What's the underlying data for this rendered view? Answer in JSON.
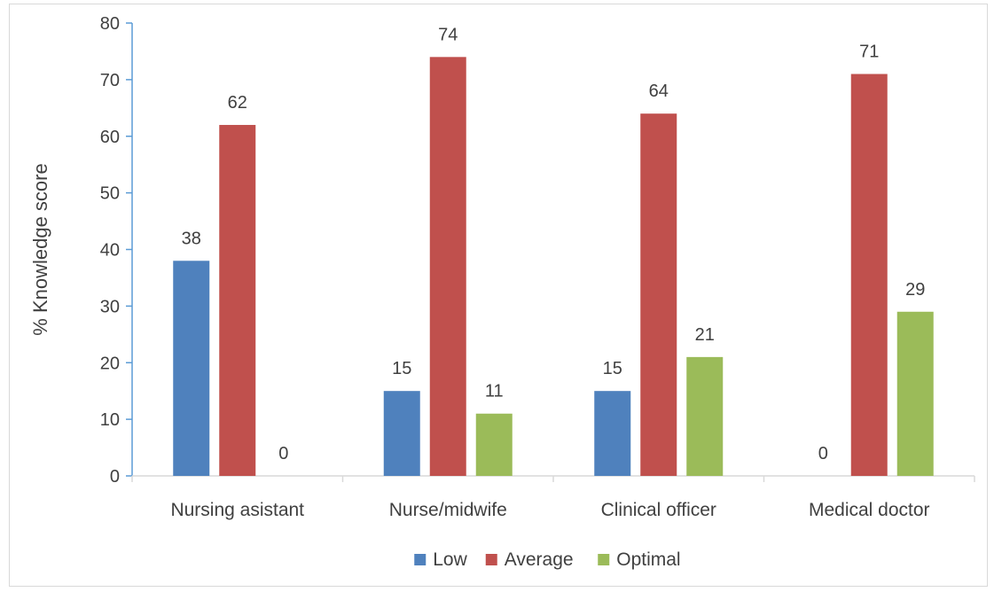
{
  "chart_data": {
    "type": "bar",
    "categories": [
      "Nursing asistant",
      "Nurse/midwife",
      "Clinical officer",
      "Medical doctor"
    ],
    "series": [
      {
        "name": "Low",
        "values": [
          38,
          15,
          15,
          0
        ],
        "color": "#4f81bd"
      },
      {
        "name": "Average",
        "values": [
          62,
          74,
          64,
          71
        ],
        "color": "#c0504d"
      },
      {
        "name": "Optimal",
        "values": [
          0,
          11,
          21,
          29
        ],
        "color": "#9bbb59"
      }
    ],
    "title": "",
    "xlabel": "",
    "ylabel": "% Knowledge score",
    "ylim": [
      0,
      80
    ],
    "yticks": [
      0,
      10,
      20,
      30,
      40,
      50,
      60,
      70,
      80
    ],
    "data_labels": true,
    "grid": false,
    "legend_position": "bottom",
    "axis_color": "#5b9bd5"
  }
}
